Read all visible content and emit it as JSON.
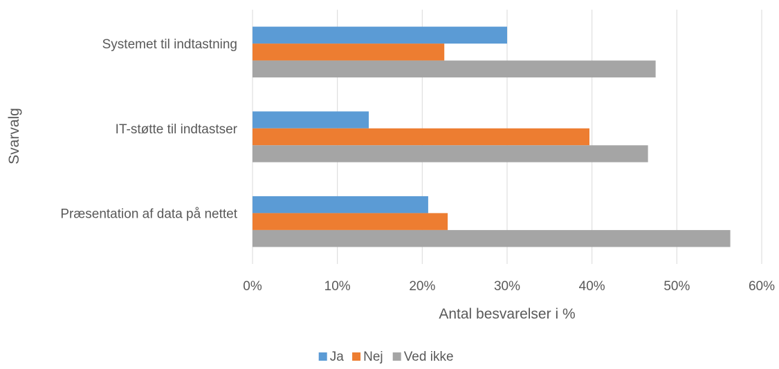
{
  "chart_data": {
    "type": "bar",
    "orientation": "horizontal",
    "title": "",
    "xlabel": "Antal besvarelser i %",
    "ylabel": "Svarvalg",
    "categories": [
      "Systemet til indtastning",
      "IT-støtte til indtastser",
      "Præsentation af data på nettet"
    ],
    "series": [
      {
        "name": "Ja",
        "color": "#5B9BD5",
        "values": [
          30.0,
          13.7,
          20.7
        ]
      },
      {
        "name": "Nej",
        "color": "#ED7D31",
        "values": [
          22.6,
          39.7,
          23.0
        ]
      },
      {
        "name": "Ved ikke",
        "color": "#A5A5A5",
        "values": [
          47.5,
          46.6,
          56.3
        ]
      }
    ],
    "xlim": [
      0,
      60
    ],
    "xticks": [
      "0%",
      "10%",
      "20%",
      "30%",
      "40%",
      "50%",
      "60%"
    ],
    "grid": true,
    "legend_position": "bottom"
  }
}
